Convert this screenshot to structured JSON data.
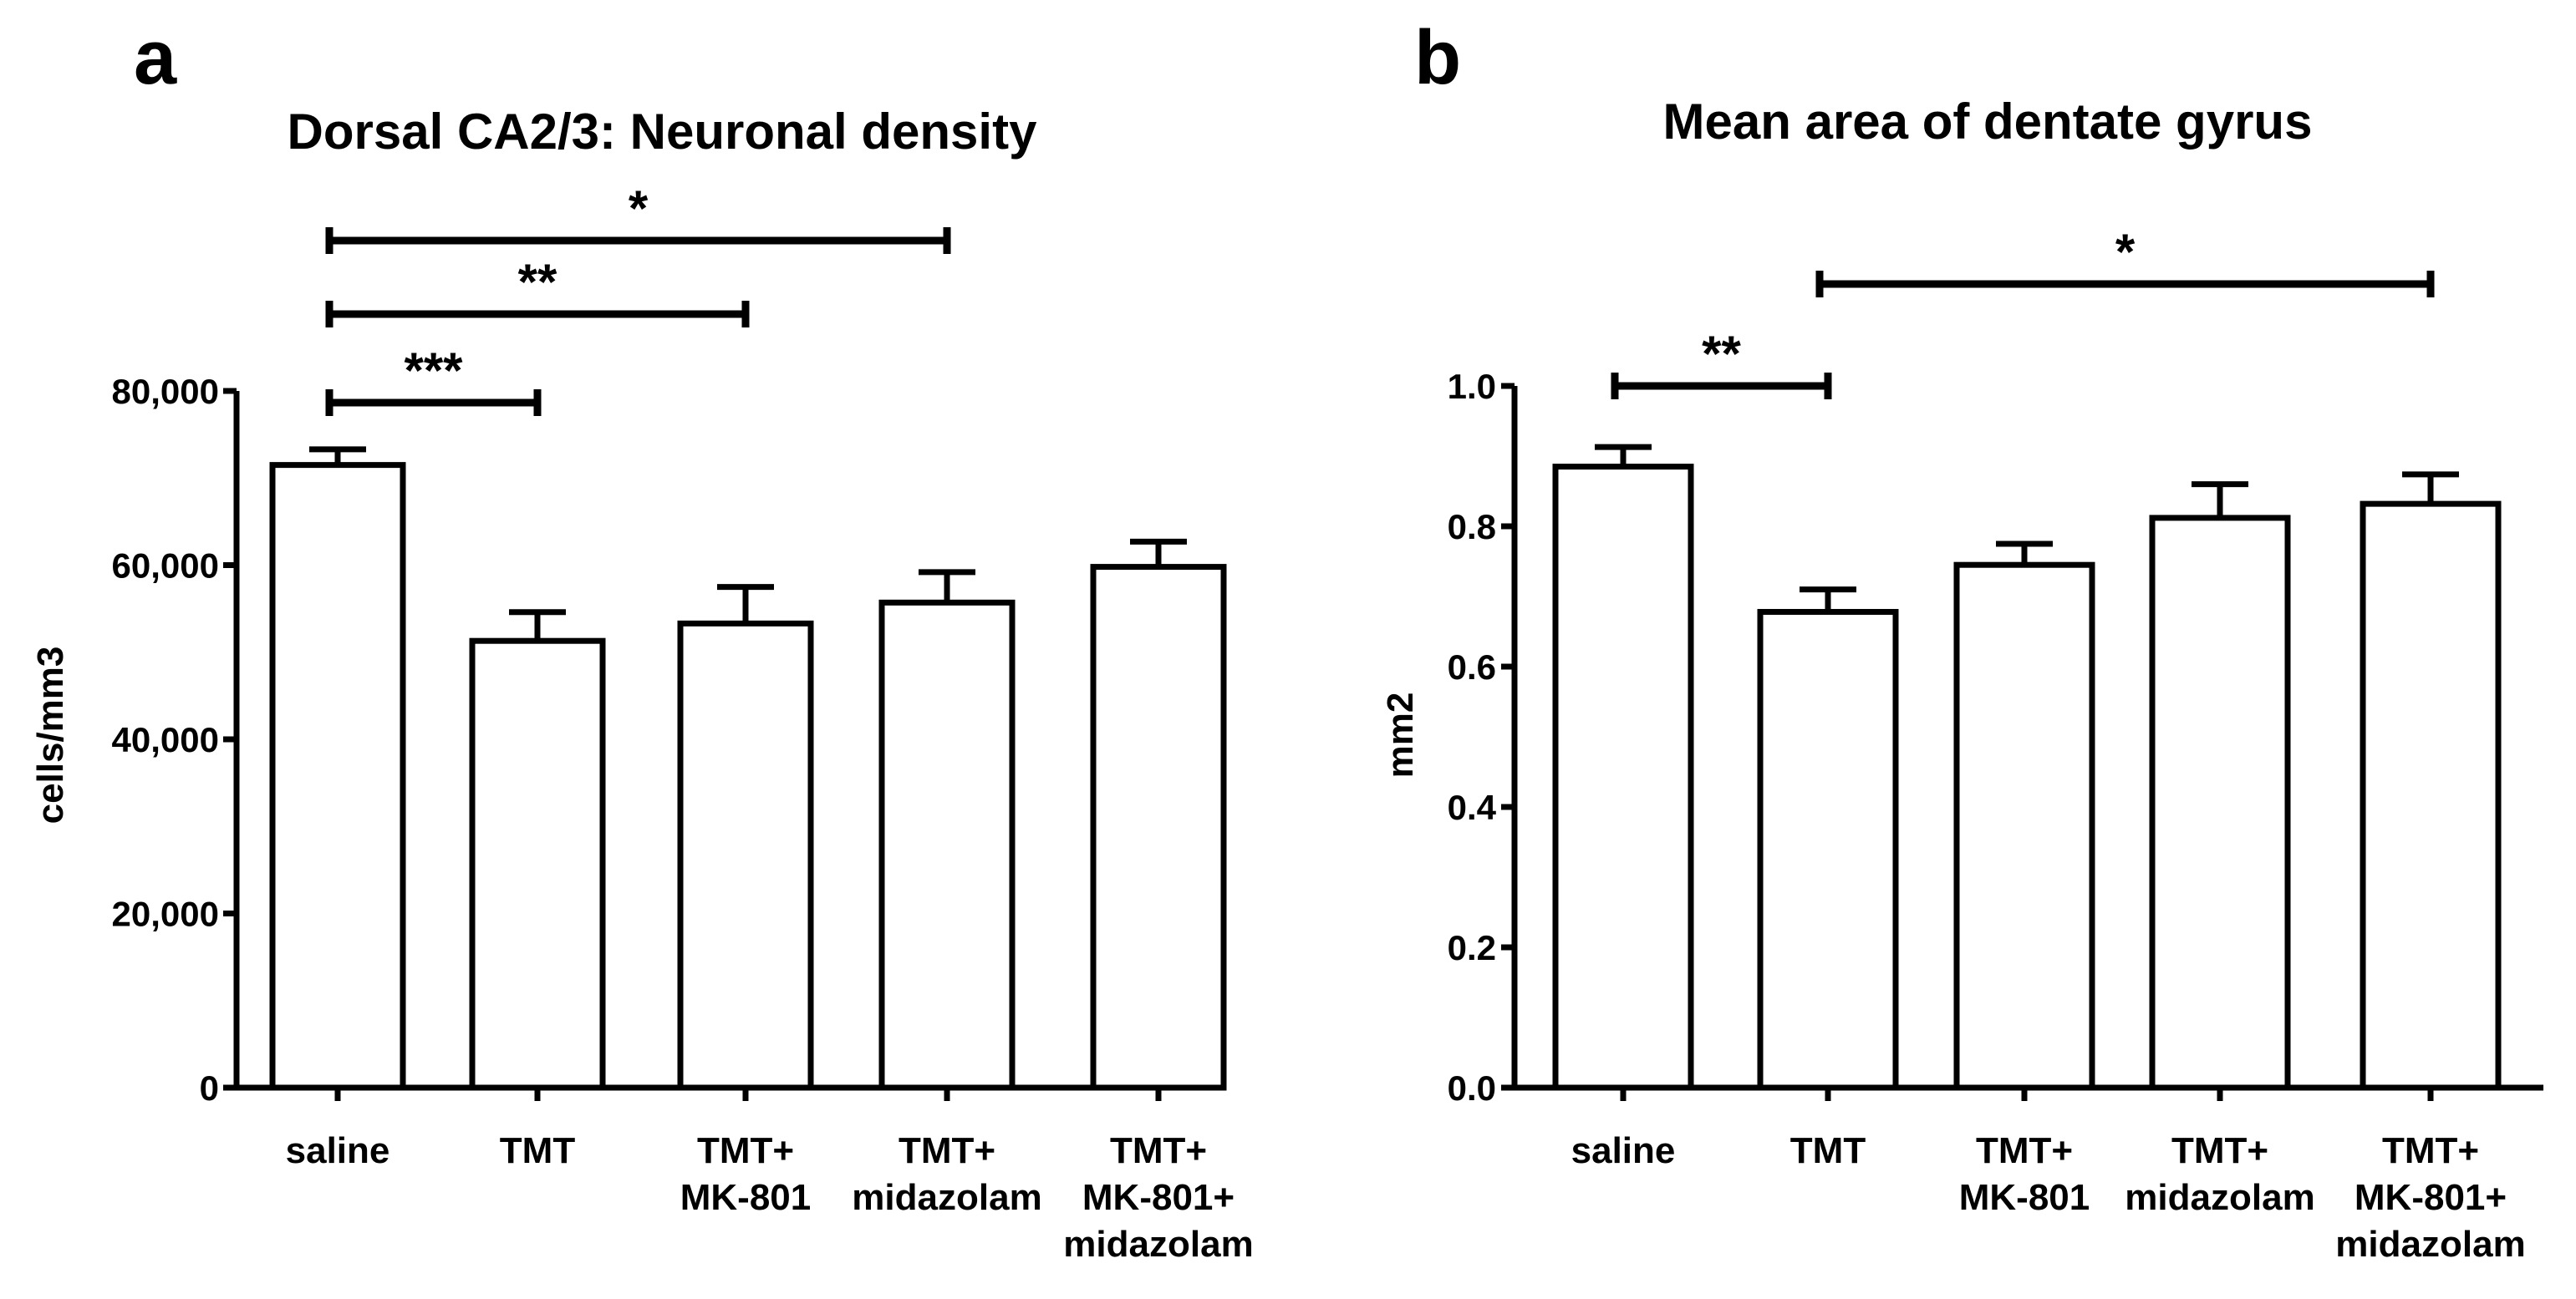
{
  "chart_data": [
    {
      "panel_label": "a",
      "type": "bar",
      "title": "Dorsal CA2/3: Neuronal density",
      "xlabel": "",
      "ylabel": "cells/mm3",
      "ylim": [
        0,
        80000
      ],
      "yticks": [
        0,
        20000,
        40000,
        60000,
        80000
      ],
      "ytick_labels": [
        "0",
        "20,000",
        "40,000",
        "60,000",
        "80,000"
      ],
      "categories": [
        [
          "saline"
        ],
        [
          "TMT"
        ],
        [
          "TMT+",
          "MK-801"
        ],
        [
          "TMT+",
          "midazolam"
        ],
        [
          "TMT+",
          "MK-801+",
          "midazolam"
        ]
      ],
      "values": [
        71500,
        51300,
        53300,
        55700,
        59800
      ],
      "errors": [
        1800,
        3300,
        4200,
        3500,
        2900
      ],
      "significance": [
        {
          "from": 0,
          "to": 1,
          "label": "***"
        },
        {
          "from": 0,
          "to": 2,
          "label": "**"
        },
        {
          "from": 0,
          "to": 3,
          "label": "*"
        }
      ],
      "grid": false
    },
    {
      "panel_label": "b",
      "type": "bar",
      "title": "Mean area of dentate gyrus",
      "xlabel": "",
      "ylabel": "mm2",
      "ylim": [
        0,
        1.0
      ],
      "yticks": [
        0,
        0.2,
        0.4,
        0.6,
        0.8,
        1.0
      ],
      "ytick_labels": [
        "0.0",
        "0.2",
        "0.4",
        "0.6",
        "0.8",
        "1.0"
      ],
      "categories": [
        [
          "saline"
        ],
        [
          "TMT"
        ],
        [
          "TMT+",
          "MK-801"
        ],
        [
          "TMT+",
          "midazolam"
        ],
        [
          "TMT+",
          "MK-801+",
          "midazolam"
        ]
      ],
      "values": [
        0.885,
        0.678,
        0.745,
        0.812,
        0.832
      ],
      "errors": [
        0.028,
        0.032,
        0.03,
        0.048,
        0.042
      ],
      "significance": [
        {
          "from": 0,
          "to": 1,
          "label": "**"
        },
        {
          "from": 1,
          "to": 4,
          "label": "*"
        }
      ],
      "grid": false
    }
  ]
}
